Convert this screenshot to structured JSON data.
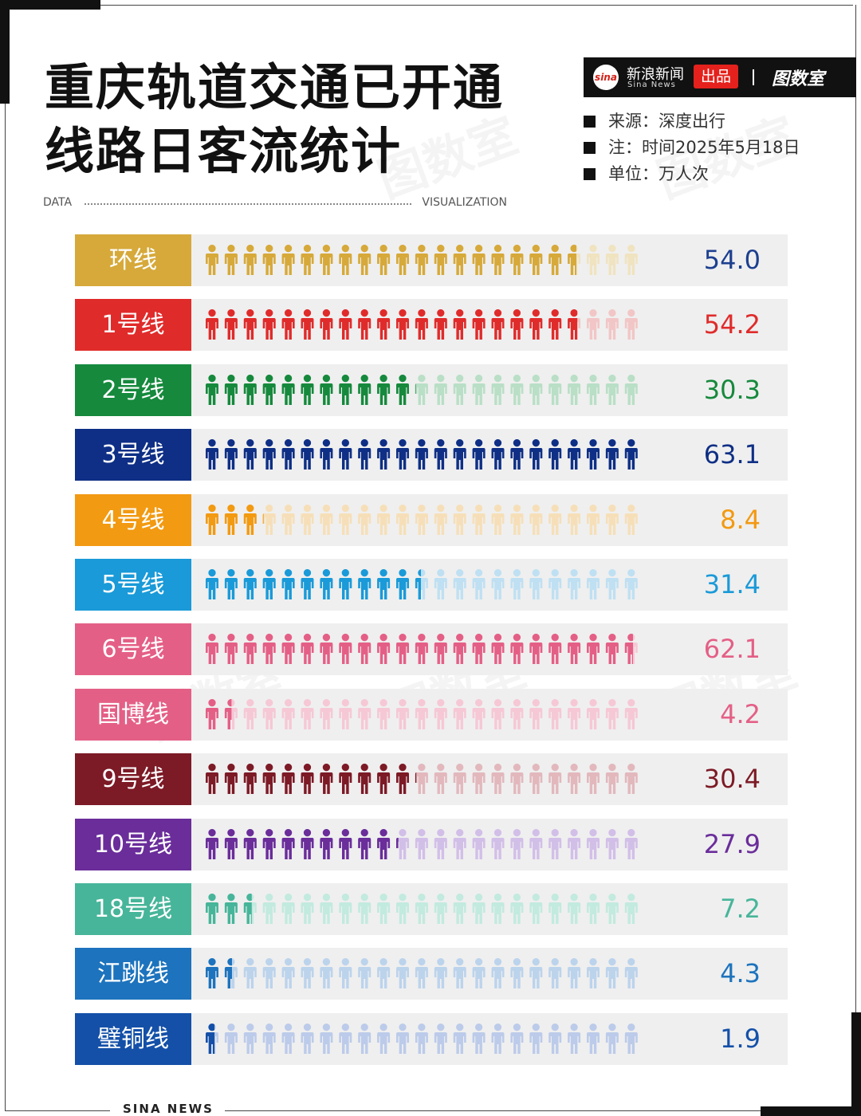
{
  "header": {
    "title_line1": "重庆轨道交通已开通",
    "title_line2": "线路日客流统计",
    "data_label": "DATA",
    "visualization_label": "VISUALIZATION"
  },
  "brand": {
    "logo": "sina",
    "name_cn": "新浪新闻",
    "name_en": "Sina News",
    "tag": "出品",
    "partner": "图数室"
  },
  "meta": {
    "source": "来源：深度出行",
    "note": "注：时间2025年5月18日",
    "unit": "单位：万人次"
  },
  "chart_data": {
    "type": "pictograph-bar",
    "title": "重庆轨道交通已开通线路日客流统计",
    "unit": "万人次",
    "max_value": 63.1,
    "icons_per_row": 23,
    "categories": [
      "环线",
      "1号线",
      "2号线",
      "3号线",
      "4号线",
      "5号线",
      "6号线",
      "国博线",
      "9号线",
      "10号线",
      "18号线",
      "江跳线",
      "璧铜线"
    ],
    "values": [
      54.0,
      54.2,
      30.3,
      63.1,
      8.4,
      31.4,
      62.1,
      4.2,
      30.4,
      27.9,
      7.2,
      4.3,
      1.9
    ],
    "value_labels": [
      "54.0",
      "54.2",
      "30.3",
      "63.1",
      "8.4",
      "31.4",
      "62.1",
      "4.2",
      "30.4",
      "27.9",
      "7.2",
      "4.3",
      "1.9"
    ],
    "colors": [
      "#d6a93a",
      "#e02b2b",
      "#16893d",
      "#0e2f85",
      "#f29a12",
      "#1a9ad8",
      "#e45f86",
      "#e45f86",
      "#7c1a26",
      "#6a2d9a",
      "#47b59a",
      "#1d73bd",
      "#1450a8"
    ],
    "value_colors": [
      "#1c3f8f",
      "#e02b2b",
      "#16893d",
      "#0e2f85",
      "#f29a12",
      "#1a9ad8",
      "#e45f86",
      "#e45f86",
      "#7c1a26",
      "#6a2d9a",
      "#47b59a",
      "#1d73bd",
      "#1450a8"
    ],
    "light_colors": [
      "#f0e3c0",
      "#f2c6c6",
      "#b9dfc6",
      "#b6c2e2",
      "#f6dfb8",
      "#bfe0f2",
      "#f6c8d5",
      "#f6c8d5",
      "#e2b8bd",
      "#d2bfe8",
      "#c2eadf",
      "#bcd3ec",
      "#bccbea"
    ]
  },
  "footer": {
    "text": "SINA NEWS"
  }
}
